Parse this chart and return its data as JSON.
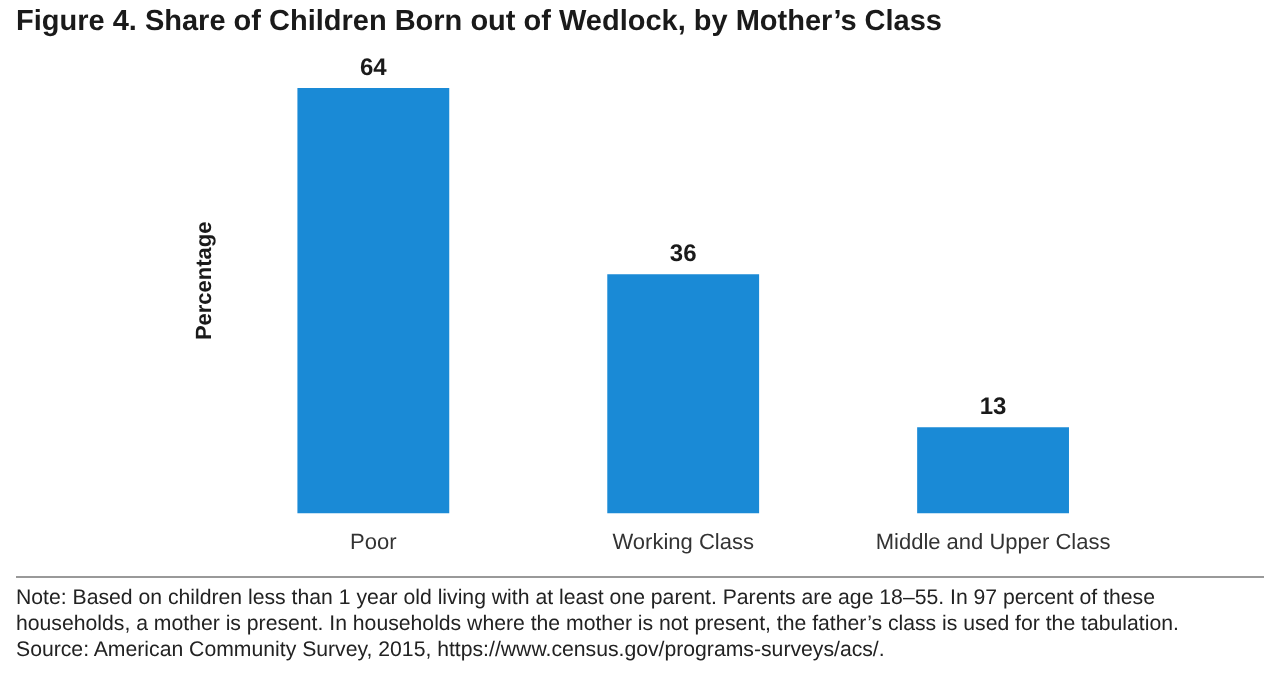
{
  "chart_data": {
    "type": "bar",
    "title": "Figure 4. Share of Children Born out of Wedlock, by Mother’s Class",
    "ylabel": "Percentage",
    "categories": [
      "Poor",
      "Working Class",
      "Middle and Upper Class"
    ],
    "values": [
      64,
      36,
      13
    ],
    "color": "#1a8ad6",
    "data_labels": true,
    "grid": false,
    "legend": false,
    "tick_labels": "x",
    "annotations": [
      "Note: Based on children less than 1 year old living with at least one parent. Parents are age 18–55. In 97 percent of these households, a mother is present. In households where the mother is not present, the father’s class is used for the tabulation.",
      "Source: American Community Survey, 2015, https://www.census.gov/programs-surveys/acs/."
    ]
  }
}
